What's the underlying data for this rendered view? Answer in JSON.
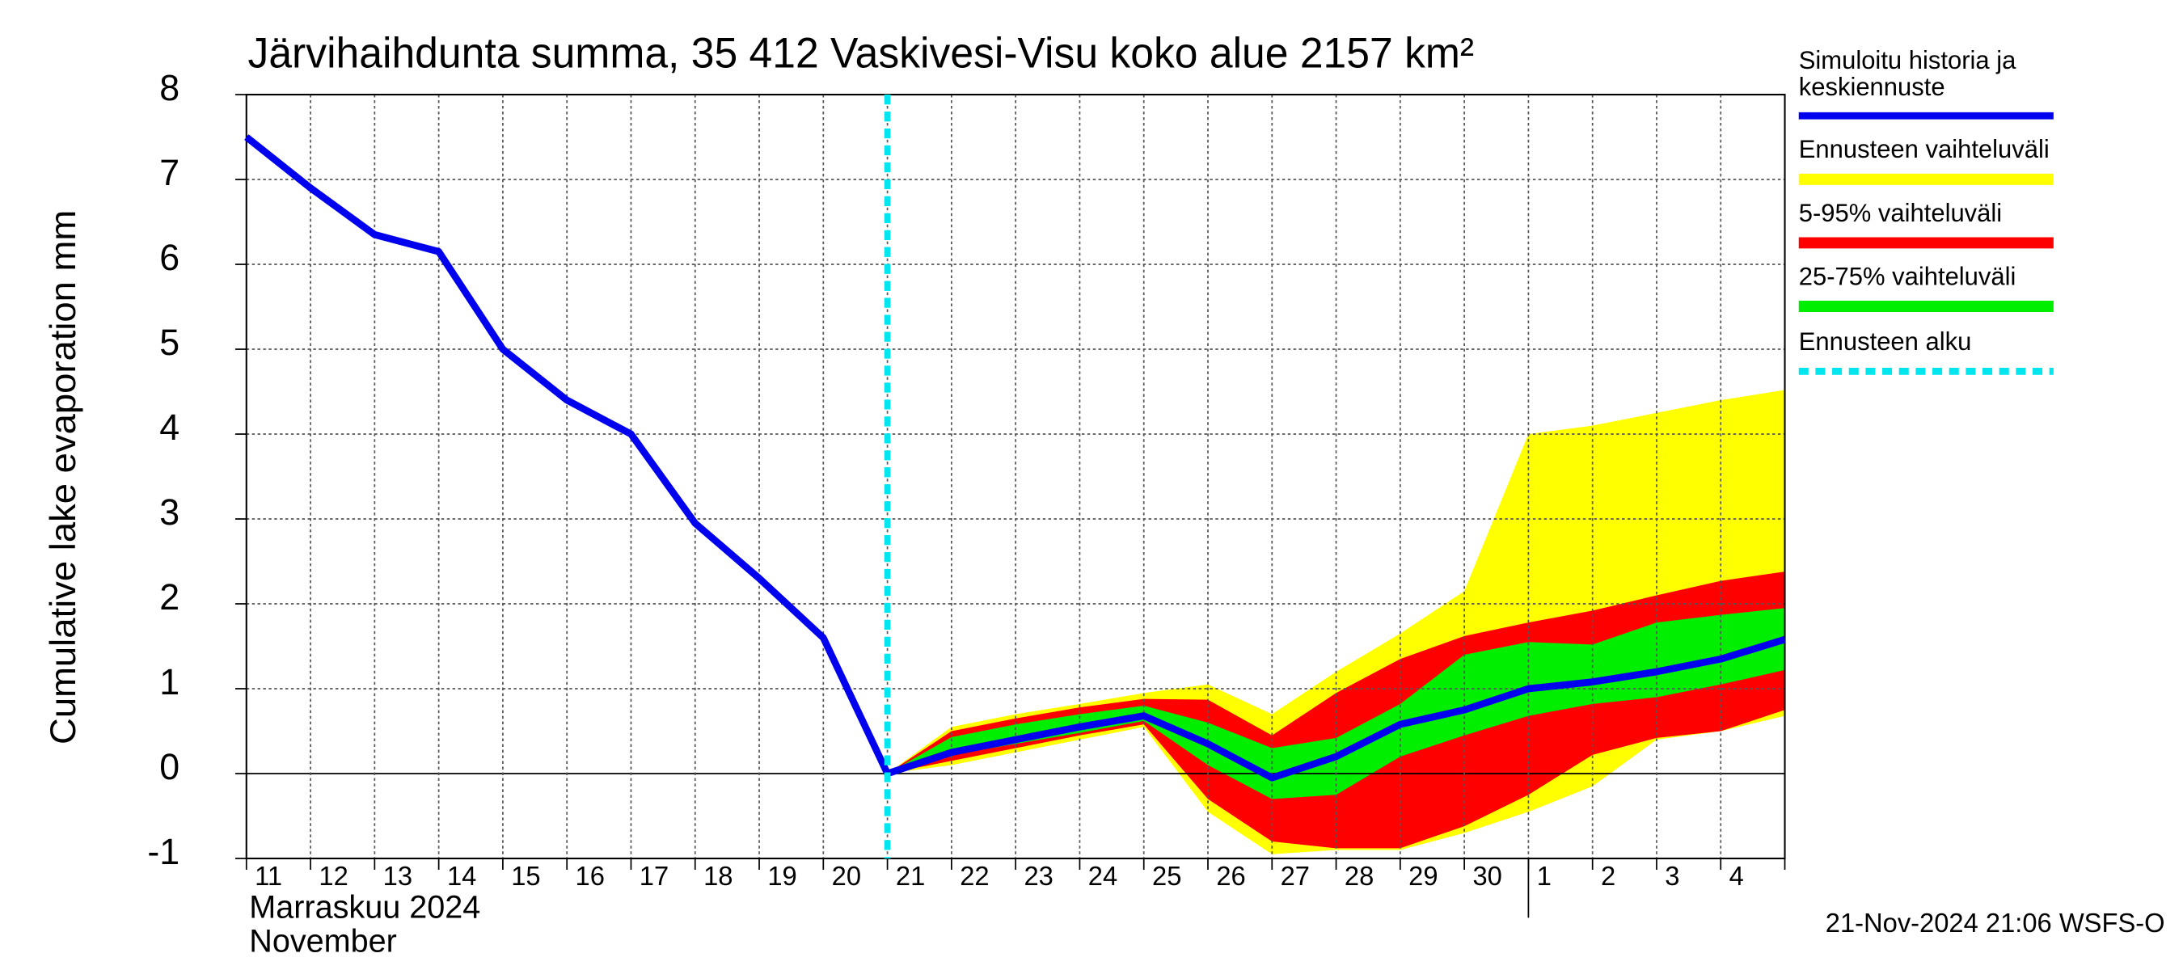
{
  "chart_data": {
    "type": "band-line",
    "title": "Järvihaihdunta summa, 35 412 Vaskivesi-Visu koko alue 2157 km²",
    "y_label": "Cumulative lake evaporation   mm",
    "month_labels": [
      "Marraskuu 2024",
      "November"
    ],
    "timestamp": "21-Nov-2024 21:06 WSFS-O",
    "categories": [
      "11",
      "12",
      "13",
      "14",
      "15",
      "16",
      "17",
      "18",
      "19",
      "20",
      "21",
      "22",
      "23",
      "24",
      "25",
      "26",
      "27",
      "28",
      "29",
      "30",
      "1",
      "2",
      "3",
      "4",
      null
    ],
    "ylim": [
      -1,
      8
    ],
    "yticks": [
      -1,
      0,
      1,
      2,
      3,
      4,
      5,
      6,
      7,
      8
    ],
    "grid": true,
    "bands": [
      {
        "name": "Ennusteen vaihteluväli",
        "color": "#ffff00",
        "upper": [
          null,
          null,
          null,
          null,
          null,
          null,
          null,
          null,
          null,
          null,
          0,
          0.55,
          0.7,
          0.82,
          0.95,
          1.05,
          0.7,
          1.2,
          1.65,
          2.15,
          4.0,
          4.1,
          4.25,
          4.4,
          4.52
        ],
        "lower": [
          null,
          null,
          null,
          null,
          null,
          null,
          null,
          null,
          null,
          null,
          0,
          0.1,
          0.25,
          0.4,
          0.55,
          -0.45,
          -0.95,
          -0.9,
          -0.9,
          -0.7,
          -0.45,
          -0.15,
          0.4,
          0.5,
          0.68
        ]
      },
      {
        "name": "5-95% vaihteluväli",
        "color": "#ff0000",
        "upper": [
          null,
          null,
          null,
          null,
          null,
          null,
          null,
          null,
          null,
          null,
          0,
          0.5,
          0.65,
          0.78,
          0.88,
          0.87,
          0.45,
          0.95,
          1.35,
          1.62,
          1.78,
          1.92,
          2.1,
          2.27,
          2.38
        ],
        "lower": [
          null,
          null,
          null,
          null,
          null,
          null,
          null,
          null,
          null,
          null,
          0,
          0.15,
          0.3,
          0.45,
          0.58,
          -0.3,
          -0.8,
          -0.88,
          -0.88,
          -0.62,
          -0.25,
          0.22,
          0.42,
          0.5,
          0.75
        ]
      },
      {
        "name": "25-75% vaihteluväli",
        "color": "#00ee00",
        "upper": [
          null,
          null,
          null,
          null,
          null,
          null,
          null,
          null,
          null,
          null,
          0,
          0.43,
          0.58,
          0.7,
          0.8,
          0.6,
          0.3,
          0.42,
          0.82,
          1.4,
          1.55,
          1.52,
          1.78,
          1.87,
          1.95
        ],
        "lower": [
          null,
          null,
          null,
          null,
          null,
          null,
          null,
          null,
          null,
          null,
          0,
          0.22,
          0.35,
          0.48,
          0.62,
          0.1,
          -0.3,
          -0.25,
          0.2,
          0.45,
          0.68,
          0.82,
          0.9,
          1.05,
          1.22
        ]
      }
    ],
    "series": [
      {
        "name": "Simuloitu historia ja\nkeskiennuste",
        "color": "#0000ee",
        "values": [
          7.5,
          6.9,
          6.35,
          6.15,
          5.0,
          4.4,
          4.0,
          2.95,
          2.3,
          1.6,
          0,
          0.25,
          0.4,
          0.55,
          0.68,
          0.35,
          -0.05,
          0.2,
          0.58,
          0.75,
          1.0,
          1.08,
          1.2,
          1.35,
          1.58
        ]
      }
    ],
    "forecast_start": {
      "name": "Ennusteen alku",
      "color": "#00e5ee",
      "x": "21"
    }
  }
}
